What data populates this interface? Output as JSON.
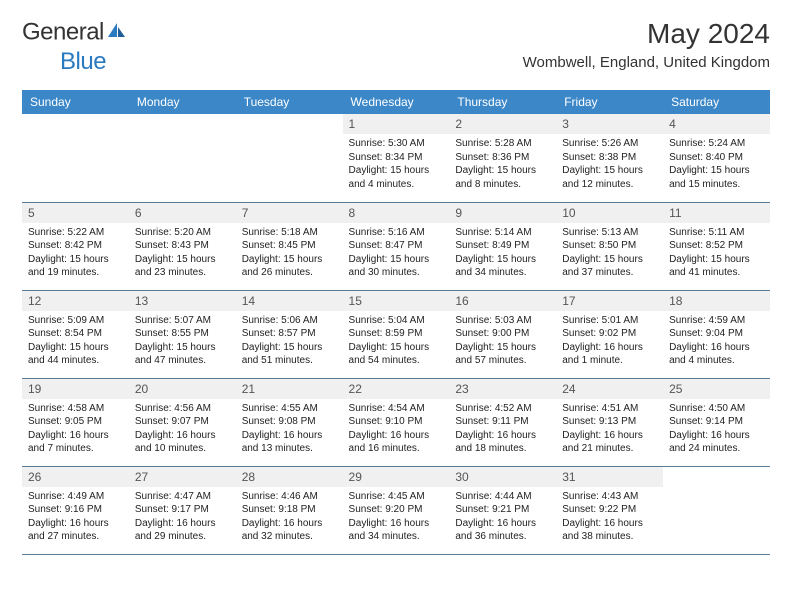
{
  "brand": {
    "part1": "General",
    "part2": "Blue"
  },
  "title": "May 2024",
  "location": "Wombwell, England, United Kingdom",
  "colors": {
    "header_bg": "#3b87c8",
    "header_text": "#ffffff",
    "daynum_bg": "#f0f0f0",
    "daynum_text": "#555555",
    "border": "#5a7a9a",
    "body_text": "#222222",
    "brand_gray": "#333333",
    "brand_blue": "#2a7ac0"
  },
  "typography": {
    "title_fontsize": 28,
    "location_fontsize": 15,
    "dayheader_fontsize": 12,
    "daynum_fontsize": 12,
    "detail_fontsize": 10
  },
  "day_headers": [
    "Sunday",
    "Monday",
    "Tuesday",
    "Wednesday",
    "Thursday",
    "Friday",
    "Saturday"
  ],
  "weeks": [
    [
      null,
      null,
      null,
      {
        "n": "1",
        "sunrise": "5:30 AM",
        "sunset": "8:34 PM",
        "daylight": "15 hours and 4 minutes."
      },
      {
        "n": "2",
        "sunrise": "5:28 AM",
        "sunset": "8:36 PM",
        "daylight": "15 hours and 8 minutes."
      },
      {
        "n": "3",
        "sunrise": "5:26 AM",
        "sunset": "8:38 PM",
        "daylight": "15 hours and 12 minutes."
      },
      {
        "n": "4",
        "sunrise": "5:24 AM",
        "sunset": "8:40 PM",
        "daylight": "15 hours and 15 minutes."
      }
    ],
    [
      {
        "n": "5",
        "sunrise": "5:22 AM",
        "sunset": "8:42 PM",
        "daylight": "15 hours and 19 minutes."
      },
      {
        "n": "6",
        "sunrise": "5:20 AM",
        "sunset": "8:43 PM",
        "daylight": "15 hours and 23 minutes."
      },
      {
        "n": "7",
        "sunrise": "5:18 AM",
        "sunset": "8:45 PM",
        "daylight": "15 hours and 26 minutes."
      },
      {
        "n": "8",
        "sunrise": "5:16 AM",
        "sunset": "8:47 PM",
        "daylight": "15 hours and 30 minutes."
      },
      {
        "n": "9",
        "sunrise": "5:14 AM",
        "sunset": "8:49 PM",
        "daylight": "15 hours and 34 minutes."
      },
      {
        "n": "10",
        "sunrise": "5:13 AM",
        "sunset": "8:50 PM",
        "daylight": "15 hours and 37 minutes."
      },
      {
        "n": "11",
        "sunrise": "5:11 AM",
        "sunset": "8:52 PM",
        "daylight": "15 hours and 41 minutes."
      }
    ],
    [
      {
        "n": "12",
        "sunrise": "5:09 AM",
        "sunset": "8:54 PM",
        "daylight": "15 hours and 44 minutes."
      },
      {
        "n": "13",
        "sunrise": "5:07 AM",
        "sunset": "8:55 PM",
        "daylight": "15 hours and 47 minutes."
      },
      {
        "n": "14",
        "sunrise": "5:06 AM",
        "sunset": "8:57 PM",
        "daylight": "15 hours and 51 minutes."
      },
      {
        "n": "15",
        "sunrise": "5:04 AM",
        "sunset": "8:59 PM",
        "daylight": "15 hours and 54 minutes."
      },
      {
        "n": "16",
        "sunrise": "5:03 AM",
        "sunset": "9:00 PM",
        "daylight": "15 hours and 57 minutes."
      },
      {
        "n": "17",
        "sunrise": "5:01 AM",
        "sunset": "9:02 PM",
        "daylight": "16 hours and 1 minute."
      },
      {
        "n": "18",
        "sunrise": "4:59 AM",
        "sunset": "9:04 PM",
        "daylight": "16 hours and 4 minutes."
      }
    ],
    [
      {
        "n": "19",
        "sunrise": "4:58 AM",
        "sunset": "9:05 PM",
        "daylight": "16 hours and 7 minutes."
      },
      {
        "n": "20",
        "sunrise": "4:56 AM",
        "sunset": "9:07 PM",
        "daylight": "16 hours and 10 minutes."
      },
      {
        "n": "21",
        "sunrise": "4:55 AM",
        "sunset": "9:08 PM",
        "daylight": "16 hours and 13 minutes."
      },
      {
        "n": "22",
        "sunrise": "4:54 AM",
        "sunset": "9:10 PM",
        "daylight": "16 hours and 16 minutes."
      },
      {
        "n": "23",
        "sunrise": "4:52 AM",
        "sunset": "9:11 PM",
        "daylight": "16 hours and 18 minutes."
      },
      {
        "n": "24",
        "sunrise": "4:51 AM",
        "sunset": "9:13 PM",
        "daylight": "16 hours and 21 minutes."
      },
      {
        "n": "25",
        "sunrise": "4:50 AM",
        "sunset": "9:14 PM",
        "daylight": "16 hours and 24 minutes."
      }
    ],
    [
      {
        "n": "26",
        "sunrise": "4:49 AM",
        "sunset": "9:16 PM",
        "daylight": "16 hours and 27 minutes."
      },
      {
        "n": "27",
        "sunrise": "4:47 AM",
        "sunset": "9:17 PM",
        "daylight": "16 hours and 29 minutes."
      },
      {
        "n": "28",
        "sunrise": "4:46 AM",
        "sunset": "9:18 PM",
        "daylight": "16 hours and 32 minutes."
      },
      {
        "n": "29",
        "sunrise": "4:45 AM",
        "sunset": "9:20 PM",
        "daylight": "16 hours and 34 minutes."
      },
      {
        "n": "30",
        "sunrise": "4:44 AM",
        "sunset": "9:21 PM",
        "daylight": "16 hours and 36 minutes."
      },
      {
        "n": "31",
        "sunrise": "4:43 AM",
        "sunset": "9:22 PM",
        "daylight": "16 hours and 38 minutes."
      },
      null
    ]
  ],
  "labels": {
    "sunrise": "Sunrise:",
    "sunset": "Sunset:",
    "daylight": "Daylight:"
  }
}
